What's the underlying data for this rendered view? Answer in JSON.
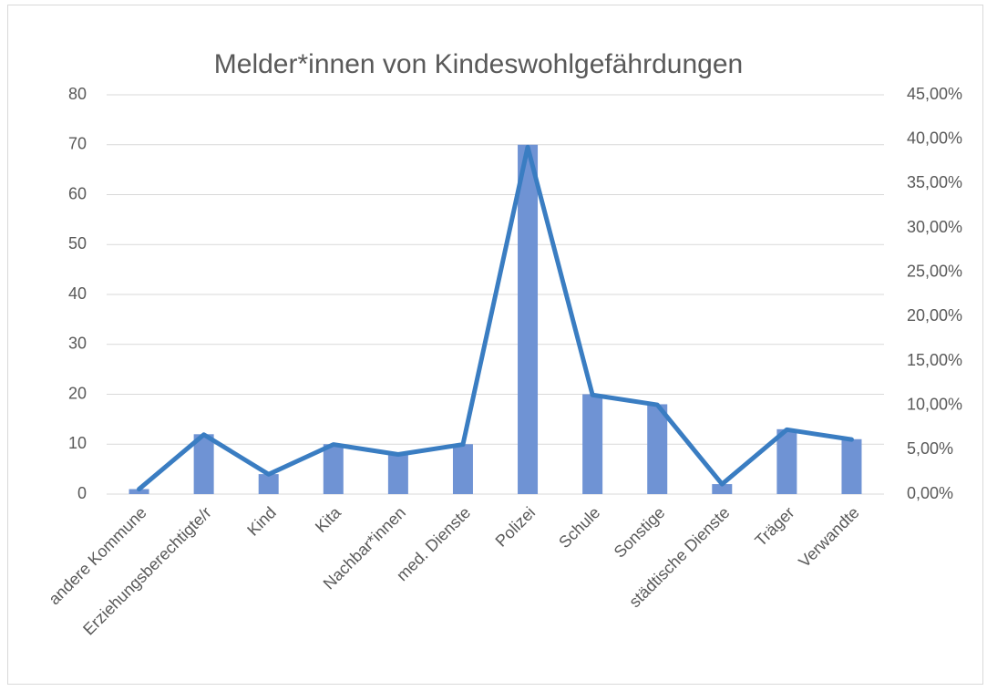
{
  "chart_data": {
    "type": "combo",
    "title": "Melder*innen von Kindeswohlgefährdungen",
    "categories": [
      "andere Kommune",
      "Erziehungsberechtigte/r",
      "Kind",
      "Kita",
      "Nachbar*innen",
      "med. Dienste",
      "Polizei",
      "Schule",
      "Sonstige",
      "städtische Dienste",
      "Träger",
      "Verwandte"
    ],
    "series": [
      {
        "type": "bar",
        "color": "#6f93d4",
        "values": [
          1,
          12,
          4,
          10,
          8,
          10,
          70,
          20,
          18,
          2,
          13,
          11
        ]
      },
      {
        "type": "line",
        "color": "#3a7dc2",
        "axis": "y2",
        "values": [
          0.56,
          6.7,
          2.23,
          5.59,
          4.47,
          5.59,
          39.11,
          11.17,
          10.06,
          1.12,
          7.26,
          6.15
        ]
      }
    ],
    "ylim": [
      0,
      80
    ],
    "yticks": [
      0,
      10,
      20,
      30,
      40,
      50,
      60,
      70,
      80
    ],
    "y2lim": [
      0,
      45
    ],
    "y2ticks": [
      {
        "value": 0,
        "label": "0,00%"
      },
      {
        "value": 5,
        "label": "5,00%"
      },
      {
        "value": 10,
        "label": "10,00%"
      },
      {
        "value": 15,
        "label": "15,00%"
      },
      {
        "value": 20,
        "label": "20,00%"
      },
      {
        "value": 25,
        "label": "25,00%"
      },
      {
        "value": 30,
        "label": "30,00%"
      },
      {
        "value": 35,
        "label": "35,00%"
      },
      {
        "value": 40,
        "label": "40,00%"
      },
      {
        "value": 45,
        "label": "45,00%"
      }
    ],
    "grid": true
  }
}
